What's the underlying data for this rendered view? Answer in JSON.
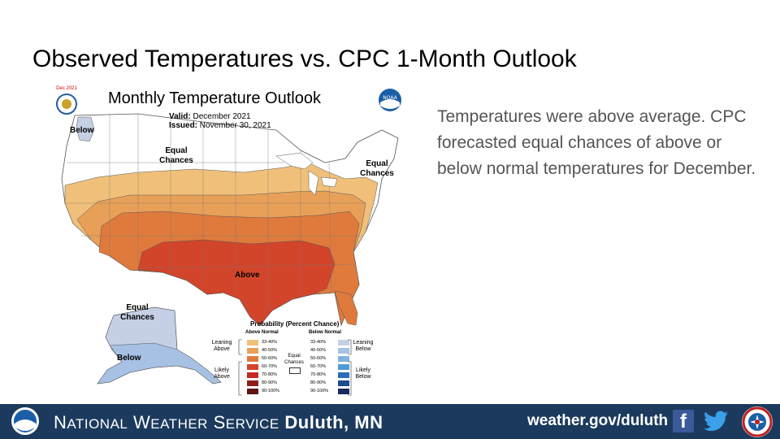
{
  "slide": {
    "title": "Observed Temperatures vs. CPC 1-Month Outlook",
    "body": "Temperatures were above average. CPC forecasted equal chances of above or below normal temperatures for December."
  },
  "map": {
    "title": "Monthly Temperature Outlook",
    "valid_label": "Valid:",
    "valid_value": "December 2021",
    "issued_label": "Issued:",
    "issued_value": "November 30, 2021",
    "badge": "Dec 2021",
    "noaa_logo_text": "NOAA",
    "regions": {
      "below_nw": "Below",
      "equal_north": "Equal Chances",
      "equal_ne": "Equal Chances",
      "above_south": "Above",
      "equal_alaska": "Equal Chances",
      "below_alaska": "Below"
    },
    "colors": {
      "above_33_40": "#f0c07a",
      "above_40_50": "#e8a058",
      "above_50_60": "#e07a3c",
      "above_60_70": "#d2452a",
      "above_70_80": "#c42a22",
      "above_80_90": "#8e1d1c",
      "above_90_100": "#5c1512",
      "below_33_40": "#c5d0e6",
      "below_40_50": "#a6c1e3",
      "below_50_60": "#7fb2e0",
      "below_60_70": "#4f9bd6",
      "below_70_80": "#2a6db8",
      "below_80_90": "#1c4a8e",
      "below_90_100": "#192a5c"
    }
  },
  "legend": {
    "title": "Probability (Percent Chance)",
    "above_header": "Above Normal",
    "below_header": "Below Normal",
    "equal_label": "Equal Chances",
    "leaning_above": "Leaning Above",
    "likely_above": "Likely Above",
    "leaning_below": "Leaning Below",
    "likely_below": "Likely Below",
    "ranges": [
      "33-40%",
      "40-50%",
      "50-60%",
      "60-70%",
      "70-80%",
      "80-90%",
      "90-100%"
    ]
  },
  "footer": {
    "org_prefix_n": "N",
    "org_rest_n": "ATIONAL",
    "org_prefix_w": "W",
    "org_rest_w": "EATHER",
    "org_prefix_s": "S",
    "org_rest_s": "ERVICE",
    "office": "Duluth, MN",
    "url": "weather.gov/duluth",
    "facebook_glyph": "f"
  }
}
